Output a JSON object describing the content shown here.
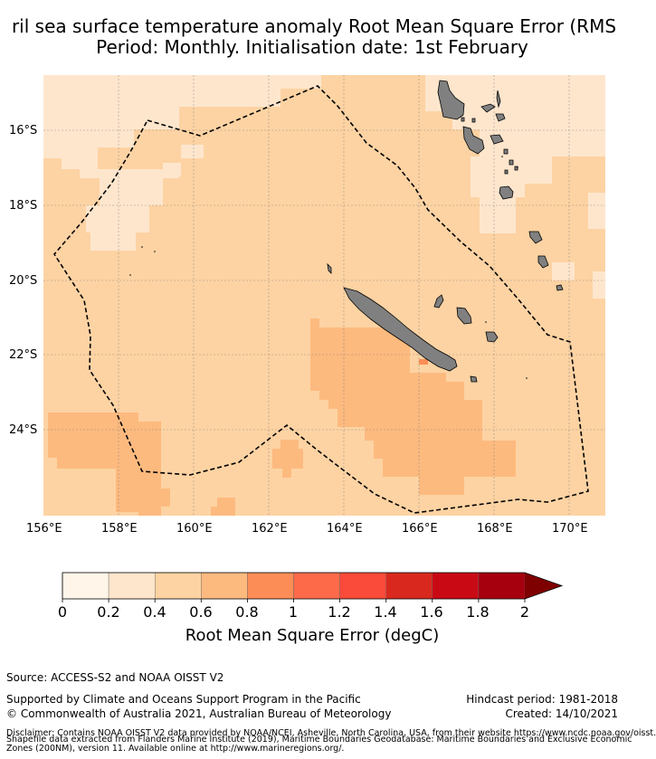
{
  "title": {
    "line1": "ril sea surface temperature anomaly Root Mean Square Error (RMS",
    "line2": "Period: Monthly. Initialisation date: 1st February"
  },
  "map": {
    "lon_range": [
      156,
      171
    ],
    "lat_range": [
      -26.2,
      -14.5
    ],
    "x_ticks": [
      "156°E",
      "158°E",
      "160°E",
      "162°E",
      "164°E",
      "166°E",
      "168°E",
      "170°E"
    ],
    "y_ticks": [
      "16°S",
      "18°S",
      "20°S",
      "22°S",
      "24°S"
    ],
    "land_color": "#808080",
    "features": [
      "eez-boundary-dashed",
      "new-caledonia",
      "loyalty-islands",
      "vanuatu-islands"
    ]
  },
  "colorbar": {
    "colors": [
      "#fff5e9",
      "#fee6cd",
      "#fdd3a3",
      "#fdba7f",
      "#fd8d56",
      "#fd6a4a",
      "#fa4a39",
      "#d9291e",
      "#c90a14",
      "#a6000f",
      "#7f0000"
    ],
    "ticks": [
      "0",
      "0.2",
      "0.4",
      "0.6",
      "0.8",
      "1",
      "1.2",
      "1.4",
      "1.6",
      "1.8",
      "2"
    ],
    "label": "Root Mean Square Error (degC)",
    "extend": "max"
  },
  "footer": {
    "source": "Source: ACCESS-S2 and NOAA OISST V2",
    "support": "Supported by Climate and Oceans Support Program in the Pacific",
    "copyright": "© Commonwealth of Australia 2021, Australian Bureau of Meteorology",
    "hindcast": "Hindcast period: 1981-2018",
    "created": "Created: 14/10/2021",
    "disclaimer1": "Disclaimer: Contains NOAA OISST V2 data provided by NOAA/NCEI, Asheville, North Carolina, USA, from their website https://www.ncdc.noaa.gov/oisst.",
    "disclaimer2": "Shapefile data extracted from Flanders Marine Institute (2019), Maritime Boundaries Geodatabase: Maritime Boundaries and Exclusive Economic",
    "disclaimer3": "Zones (200NM), version 11. Available online at http://www.marineregions.org/."
  }
}
